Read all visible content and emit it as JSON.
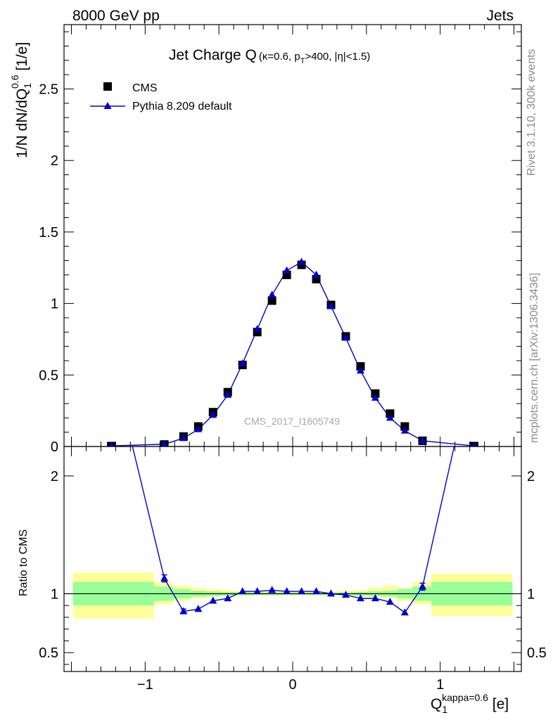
{
  "header": {
    "left": "8000 GeV pp",
    "right": "Jets"
  },
  "side_text": {
    "rivet": "Rivet 3.1.10,  300k events",
    "mcplots": "mcplots.cern.ch [arXiv:1306.3436]"
  },
  "watermark": "CMS_2017_I1605749",
  "chart_data": [
    {
      "type": "scatter",
      "panel": "main",
      "title": {
        "main": "Jet Charge Q",
        "kappa": "κ=0.6, p",
        "pt_sub": "T",
        "rest": ">400, |η|<1.5)",
        "open": "("
      },
      "ylabel": {
        "main": "1/N dN/dQ",
        "sub": "1",
        "sup": "0.6",
        "unit": " [1/e]"
      },
      "xlim": [
        -1.55,
        1.55
      ],
      "ylim": [
        0,
        2.95
      ],
      "yticks": [
        0,
        0.5,
        1,
        1.5,
        2,
        2.5
      ],
      "ytick_labels": [
        "0",
        "0.5",
        "1",
        "1.5",
        "2",
        "2.5"
      ],
      "legend": {
        "position": "top-left",
        "entries": [
          "CMS",
          "Pythia 8.209 default"
        ]
      },
      "series": [
        {
          "name": "CMS",
          "marker": "square",
          "color": "#000000",
          "x": [
            -1.23,
            -0.87,
            -0.74,
            -0.64,
            -0.54,
            -0.44,
            -0.34,
            -0.24,
            -0.14,
            -0.04,
            0.06,
            0.16,
            0.26,
            0.36,
            0.46,
            0.56,
            0.66,
            0.76,
            0.88,
            1.23
          ],
          "y": [
            0.003,
            0.014,
            0.07,
            0.14,
            0.24,
            0.38,
            0.57,
            0.8,
            1.02,
            1.2,
            1.27,
            1.17,
            0.99,
            0.77,
            0.56,
            0.37,
            0.23,
            0.14,
            0.04,
            0.003
          ]
        },
        {
          "name": "Pythia 8.209 default",
          "marker": "triangle",
          "color": "#0000cc",
          "x": [
            -1.23,
            -0.87,
            -0.74,
            -0.64,
            -0.54,
            -0.44,
            -0.34,
            -0.24,
            -0.14,
            -0.04,
            0.06,
            0.16,
            0.26,
            0.36,
            0.46,
            0.56,
            0.66,
            0.76,
            0.88,
            1.23
          ],
          "y": [
            0.004,
            0.016,
            0.058,
            0.12,
            0.22,
            0.36,
            0.58,
            0.82,
            1.06,
            1.23,
            1.29,
            1.2,
            0.98,
            0.76,
            0.53,
            0.34,
            0.2,
            0.11,
            0.04,
            0.004
          ]
        }
      ]
    },
    {
      "type": "line",
      "panel": "ratio",
      "ylabel": "Ratio to CMS",
      "xlabel": {
        "main": "Q",
        "sub": "1",
        "sup": "kappa=0.6",
        "unit": " [e]"
      },
      "xlim": [
        -1.55,
        1.55
      ],
      "ylim": [
        0.34,
        2.25
      ],
      "xticks": [
        -1,
        0,
        1
      ],
      "xtick_labels": [
        "−1",
        "0",
        "1"
      ],
      "yticks": [
        0.5,
        1,
        2
      ],
      "ytick_labels": [
        "0.5",
        "1",
        "2"
      ],
      "reference_line": 1,
      "bands": {
        "bin_edges": [
          -1.49,
          -0.94,
          -0.81,
          -0.69,
          -0.59,
          -0.49,
          -0.39,
          -0.29,
          -0.19,
          -0.09,
          0.01,
          0.11,
          0.21,
          0.31,
          0.41,
          0.51,
          0.61,
          0.71,
          0.81,
          0.94,
          1.49
        ],
        "green_lo": [
          0.9,
          0.94,
          0.96,
          0.975,
          0.98,
          0.985,
          0.988,
          0.99,
          0.99,
          0.99,
          0.99,
          0.99,
          0.99,
          0.988,
          0.985,
          0.98,
          0.975,
          0.96,
          0.94,
          0.9
        ],
        "green_hi": [
          1.1,
          1.06,
          1.04,
          1.025,
          1.02,
          1.015,
          1.012,
          1.01,
          1.01,
          1.01,
          1.01,
          1.01,
          1.01,
          1.012,
          1.015,
          1.02,
          1.025,
          1.04,
          1.06,
          1.1
        ],
        "yellow_lo": [
          0.79,
          0.91,
          0.94,
          0.96,
          0.97,
          0.975,
          0.98,
          0.985,
          0.985,
          0.985,
          0.985,
          0.985,
          0.985,
          0.98,
          0.975,
          0.97,
          0.96,
          0.94,
          0.91,
          0.81
        ],
        "yellow_hi": [
          1.18,
          1.1,
          1.07,
          1.05,
          1.04,
          1.03,
          1.025,
          1.02,
          1.02,
          1.02,
          1.02,
          1.02,
          1.02,
          1.025,
          1.03,
          1.05,
          1.07,
          1.05,
          1.1,
          1.17
        ]
      },
      "series": [
        {
          "name": "Pythia 8.209 default",
          "marker": "triangle",
          "color": "#0000cc",
          "x": [
            -1.23,
            -0.87,
            -0.74,
            -0.64,
            -0.54,
            -0.44,
            -0.34,
            -0.24,
            -0.14,
            -0.04,
            0.06,
            0.16,
            0.26,
            0.36,
            0.46,
            0.56,
            0.66,
            0.76,
            0.88,
            1.23
          ],
          "y": [
            3.0,
            1.13,
            0.85,
            0.87,
            0.94,
            0.96,
            1.02,
            1.02,
            1.03,
            1.02,
            1.02,
            1.02,
            1.0,
            0.99,
            0.96,
            0.96,
            0.93,
            0.84,
            1.06,
            3.0
          ],
          "err": [
            0,
            0.03,
            0.02,
            0.01,
            0.01,
            0.005,
            0.005,
            0.005,
            0.005,
            0.005,
            0.005,
            0.005,
            0.005,
            0.005,
            0.005,
            0.01,
            0.01,
            0.01,
            0.03,
            0
          ]
        }
      ]
    }
  ]
}
